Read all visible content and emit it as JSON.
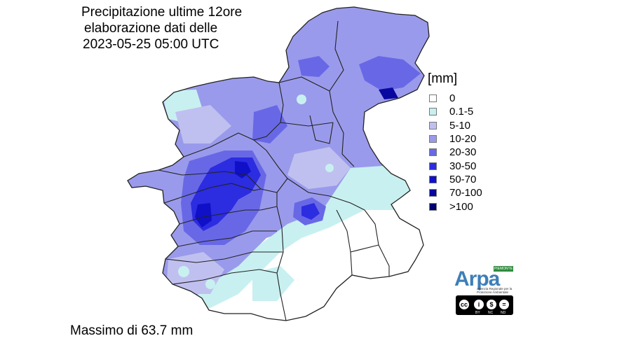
{
  "title": {
    "line1": "Precipitazione ultime 12ore",
    "line2": "elaborazione dati delle",
    "line3": "2023-05-25 05:00 UTC"
  },
  "legend": {
    "unit": "[mm]",
    "items": [
      {
        "label": "0",
        "color": "#ffffff"
      },
      {
        "label": "0.1-5",
        "color": "#c8f0f0"
      },
      {
        "label": "5-10",
        "color": "#c0c0f0"
      },
      {
        "label": "10-20",
        "color": "#9a9aec"
      },
      {
        "label": "20-30",
        "color": "#6868e6"
      },
      {
        "label": "30-50",
        "color": "#2c2ce0"
      },
      {
        "label": "50-70",
        "color": "#1010c8"
      },
      {
        "label": "70-100",
        "color": "#0808a0"
      },
      {
        "label": ">100",
        "color": "#000070"
      }
    ]
  },
  "footer": {
    "max_text": "Massimo di 63.7 mm"
  },
  "logo": {
    "name": "Arpa",
    "badge": "PIEMONTE",
    "subtitle": "Agenzia Regionale per la Protezione Ambientale",
    "license": [
      "BY",
      "NC",
      "ND"
    ]
  }
}
